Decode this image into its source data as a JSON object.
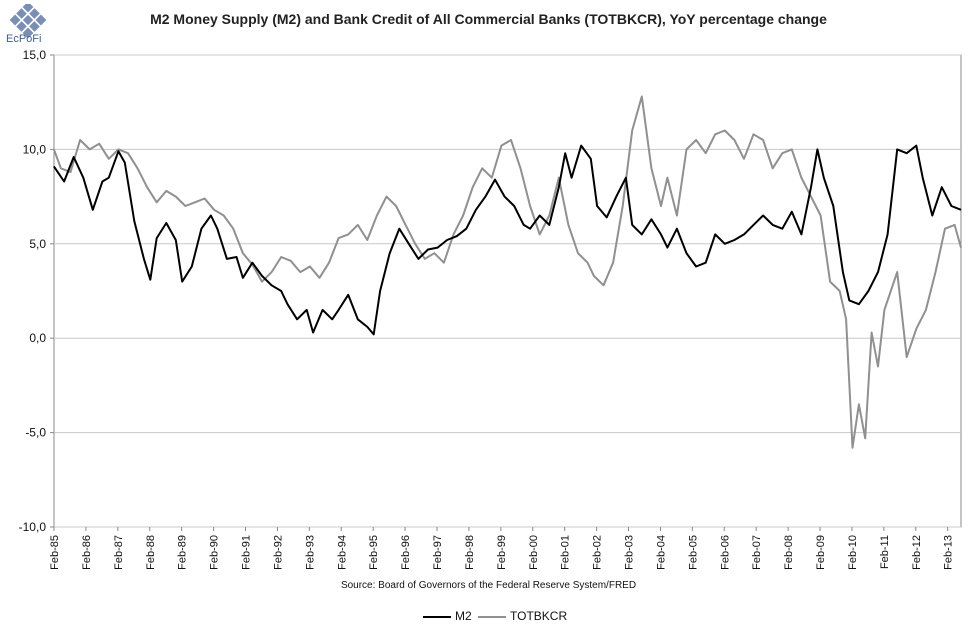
{
  "logo": {
    "name": "EcPoFi"
  },
  "chart_data": {
    "type": "line",
    "title": "M2 Money Supply (M2) and Bank Credit of All Commercial Banks (TOTBKCR), YoY percentage change",
    "source": "Source: Board of Governors of the Federal Reserve System/FRED",
    "xlabel": "",
    "ylabel": "",
    "ylim": [
      -10,
      15
    ],
    "y_ticks": [
      "15,0",
      "10,0",
      "5,0",
      "0,0",
      "-5,0",
      "-10,0"
    ],
    "y_tick_values": [
      15,
      10,
      5,
      0,
      -5,
      -10
    ],
    "x_ticks": [
      "Feb-85",
      "Feb-86",
      "Feb-87",
      "Feb-88",
      "Feb-89",
      "Feb-90",
      "Feb-91",
      "Feb-92",
      "Feb-93",
      "Feb-94",
      "Feb-95",
      "Feb-96",
      "Feb-97",
      "Feb-98",
      "Feb-99",
      "Feb-00",
      "Feb-01",
      "Feb-02",
      "Feb-03",
      "Feb-04",
      "Feb-05",
      "Feb-06",
      "Feb-07",
      "Feb-08",
      "Feb-09",
      "Feb-10",
      "Feb-11",
      "Feb-12",
      "Feb-13"
    ],
    "x_range": [
      1985.083,
      2013.5
    ],
    "grid": true,
    "legend_position": "bottom",
    "series": [
      {
        "name": "M2",
        "color": "#000000",
        "x": [
          1985.08,
          1985.4,
          1985.7,
          1986.0,
          1986.3,
          1986.6,
          1986.8,
          1987.1,
          1987.3,
          1987.6,
          1987.9,
          1988.1,
          1988.3,
          1988.6,
          1988.9,
          1989.1,
          1989.4,
          1989.7,
          1990.0,
          1990.2,
          1990.5,
          1990.8,
          1991.0,
          1991.3,
          1991.6,
          1991.9,
          1992.2,
          1992.4,
          1992.7,
          1993.0,
          1993.2,
          1993.5,
          1993.8,
          1994.0,
          1994.3,
          1994.6,
          1994.9,
          1995.1,
          1995.3,
          1995.6,
          1995.9,
          1996.2,
          1996.5,
          1996.8,
          1997.1,
          1997.4,
          1997.7,
          1998.0,
          1998.3,
          1998.6,
          1998.9,
          1999.2,
          1999.5,
          1999.8,
          2000.0,
          2000.3,
          2000.6,
          2000.9,
          2001.1,
          2001.3,
          2001.6,
          2001.9,
          2002.1,
          2002.4,
          2002.7,
          2003.0,
          2003.2,
          2003.5,
          2003.8,
          2004.1,
          2004.3,
          2004.6,
          2004.9,
          2005.2,
          2005.5,
          2005.8,
          2006.1,
          2006.4,
          2006.7,
          2007.0,
          2007.3,
          2007.6,
          2007.9,
          2008.2,
          2008.5,
          2008.8,
          2009.0,
          2009.2,
          2009.5,
          2009.8,
          2010.0,
          2010.3,
          2010.6,
          2010.9,
          2011.2,
          2011.5,
          2011.8,
          2012.1,
          2012.3,
          2012.6,
          2012.9,
          2013.2,
          2013.5
        ],
        "values": [
          9.1,
          8.3,
          9.6,
          8.5,
          6.8,
          8.3,
          8.5,
          9.9,
          9.3,
          6.2,
          4.2,
          3.1,
          5.3,
          6.1,
          5.2,
          3.0,
          3.8,
          5.8,
          6.5,
          5.8,
          4.2,
          4.3,
          3.2,
          4.0,
          3.3,
          2.8,
          2.5,
          1.8,
          1.0,
          1.5,
          0.3,
          1.5,
          1.0,
          1.5,
          2.3,
          1.0,
          0.6,
          0.2,
          2.5,
          4.5,
          5.8,
          5.0,
          4.2,
          4.7,
          4.8,
          5.2,
          5.4,
          5.8,
          6.8,
          7.5,
          8.4,
          7.5,
          7.0,
          6.0,
          5.8,
          6.5,
          6.0,
          8.0,
          9.8,
          8.5,
          10.2,
          9.5,
          7.0,
          6.4,
          7.5,
          8.5,
          6.0,
          5.5,
          6.3,
          5.5,
          4.8,
          5.8,
          4.5,
          3.8,
          4.0,
          5.5,
          5.0,
          5.2,
          5.5,
          6.0,
          6.5,
          6.0,
          5.8,
          6.7,
          5.5,
          8.0,
          10.0,
          8.5,
          7.0,
          3.5,
          2.0,
          1.8,
          2.5,
          3.5,
          5.5,
          10.0,
          9.8,
          10.2,
          8.5,
          6.5,
          8.0,
          7.0,
          6.8
        ]
      },
      {
        "name": "TOTBKCR",
        "color": "#909090",
        "x": [
          1985.08,
          1985.3,
          1985.6,
          1985.9,
          1986.2,
          1986.5,
          1986.8,
          1987.1,
          1987.4,
          1987.7,
          1988.0,
          1988.3,
          1988.6,
          1988.9,
          1989.2,
          1989.5,
          1989.8,
          1990.1,
          1990.4,
          1990.7,
          1991.0,
          1991.3,
          1991.6,
          1991.9,
          1992.2,
          1992.5,
          1992.8,
          1993.1,
          1993.4,
          1993.7,
          1994.0,
          1994.3,
          1994.6,
          1994.9,
          1995.2,
          1995.5,
          1995.8,
          1996.1,
          1996.4,
          1996.7,
          1997.0,
          1997.3,
          1997.6,
          1997.9,
          1998.2,
          1998.5,
          1998.8,
          1999.1,
          1999.4,
          1999.7,
          2000.0,
          2000.3,
          2000.6,
          2000.9,
          2001.2,
          2001.5,
          2001.8,
          2002.0,
          2002.3,
          2002.6,
          2002.9,
          2003.2,
          2003.5,
          2003.8,
          2004.1,
          2004.3,
          2004.6,
          2004.9,
          2005.2,
          2005.5,
          2005.8,
          2006.1,
          2006.4,
          2006.7,
          2007.0,
          2007.3,
          2007.6,
          2007.9,
          2008.2,
          2008.5,
          2008.8,
          2009.1,
          2009.4,
          2009.7,
          2009.9,
          2010.1,
          2010.3,
          2010.5,
          2010.7,
          2010.9,
          2011.1,
          2011.3,
          2011.5,
          2011.8,
          2012.1,
          2012.4,
          2012.7,
          2013.0,
          2013.3,
          2013.5
        ],
        "values": [
          10.0,
          9.0,
          8.8,
          10.5,
          10.0,
          10.3,
          9.5,
          10.0,
          9.8,
          9.0,
          8.0,
          7.2,
          7.8,
          7.5,
          7.0,
          7.2,
          7.4,
          6.8,
          6.5,
          5.8,
          4.5,
          3.9,
          3.0,
          3.5,
          4.3,
          4.1,
          3.5,
          3.8,
          3.2,
          4.0,
          5.3,
          5.5,
          6.0,
          5.2,
          6.5,
          7.5,
          7.0,
          6.0,
          5.0,
          4.2,
          4.5,
          4.0,
          5.5,
          6.5,
          8.0,
          9.0,
          8.5,
          10.2,
          10.5,
          9.0,
          7.0,
          5.5,
          6.5,
          8.5,
          6.0,
          4.5,
          4.0,
          3.3,
          2.8,
          4.0,
          7.0,
          11.0,
          12.8,
          9.0,
          7.0,
          8.5,
          6.5,
          10.0,
          10.5,
          9.8,
          10.8,
          11.0,
          10.5,
          9.5,
          10.8,
          10.5,
          9.0,
          9.8,
          10.0,
          8.5,
          7.5,
          6.5,
          3.0,
          2.5,
          1.0,
          -5.8,
          -3.5,
          -5.3,
          0.3,
          -1.5,
          1.5,
          2.5,
          3.5,
          -1.0,
          0.5,
          1.5,
          3.5,
          5.8,
          6.0,
          4.8
        ]
      }
    ]
  }
}
